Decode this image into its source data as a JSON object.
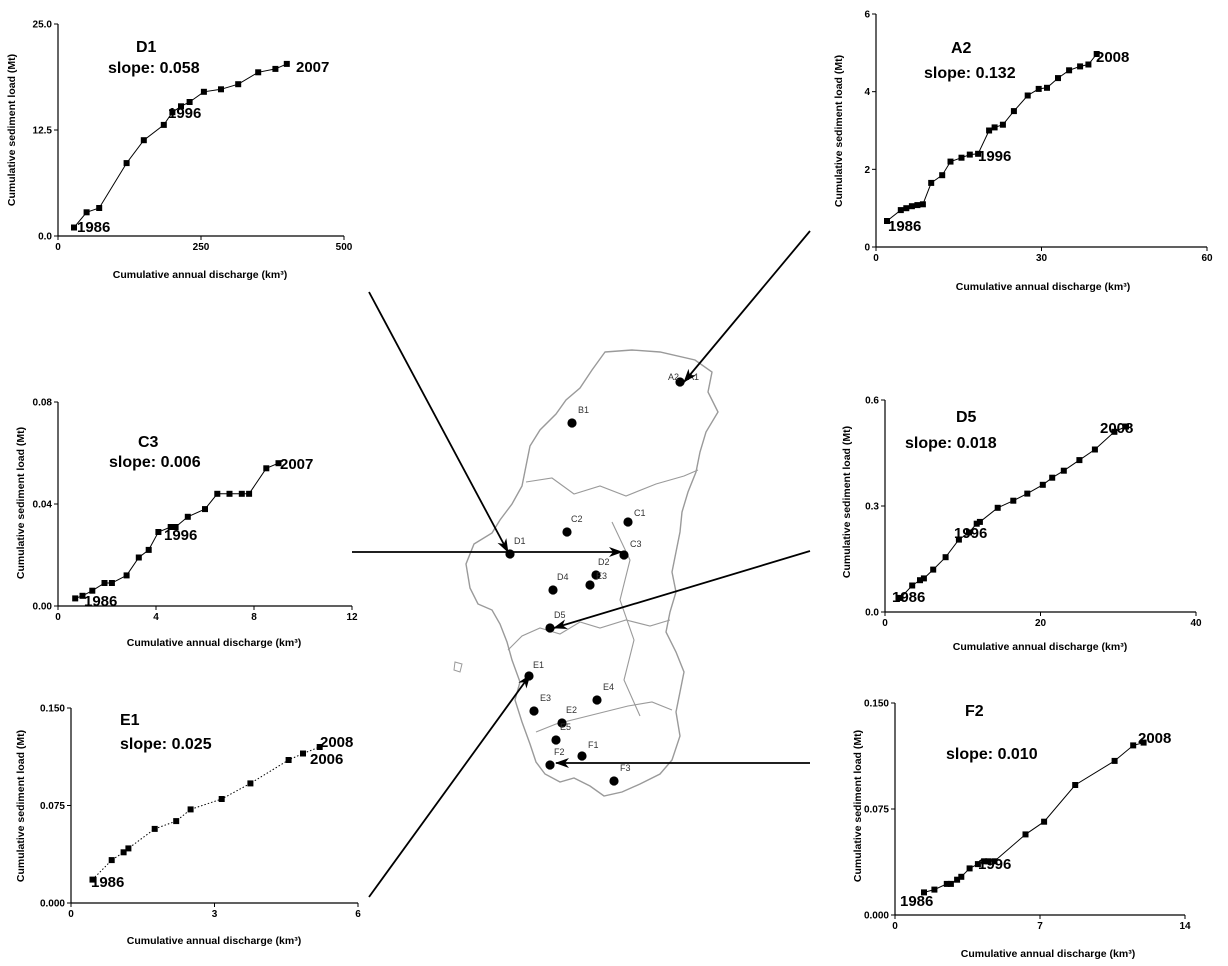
{
  "figure": {
    "map_labels": [
      "A2",
      "A1",
      "B1",
      "C1",
      "C2",
      "D1",
      "C3",
      "D2",
      "E3",
      "D4",
      "D5",
      "E1",
      "E3",
      "E4",
      "E2",
      "E5",
      "F1",
      "F2",
      "F3"
    ]
  },
  "chart_data": [
    {
      "id": "D1",
      "type": "line",
      "title": "D1",
      "subtitle": "slope: 0.058",
      "xlabel": "Cumulative annual discharge (km³)",
      "ylabel": "Cumulative sediment load (Mt)",
      "xlim": [
        0,
        500
      ],
      "ylim": [
        0,
        25
      ],
      "xticks": [
        "0",
        "250",
        "500"
      ],
      "yticks": [
        "0.0",
        "12.5",
        "25.0"
      ],
      "annotations": [
        "1986",
        "1996",
        "2007"
      ],
      "line_style": "solid",
      "series": [
        {
          "x": [
            28,
            50,
            72,
            120,
            150,
            185,
            200,
            215,
            230,
            255,
            285,
            315,
            350,
            380,
            400
          ],
          "y": [
            1.0,
            2.8,
            3.3,
            8.6,
            11.3,
            13.1,
            14.6,
            15.3,
            15.8,
            17.0,
            17.3,
            17.9,
            19.3,
            19.7,
            20.3
          ]
        }
      ]
    },
    {
      "id": "A2",
      "type": "line",
      "title": "A2",
      "subtitle": "slope: 0.132",
      "xlabel": "Cumulative annual discharge (km³)",
      "ylabel": "Cumulative sediment load (Mt)",
      "xlim": [
        0,
        60
      ],
      "ylim": [
        0,
        6
      ],
      "xticks": [
        "0",
        "30",
        "60"
      ],
      "yticks": [
        "0",
        "2",
        "4",
        "6"
      ],
      "annotations": [
        "1986",
        "1996",
        "2008"
      ],
      "line_style": "solid",
      "series": [
        {
          "x": [
            2,
            4.5,
            5.5,
            6.5,
            7.5,
            8.5,
            10,
            12,
            13.5,
            15.5,
            17,
            18.5,
            20.5,
            21.5,
            23,
            25,
            27.5,
            29.5,
            31,
            33,
            35,
            37,
            38.5,
            40
          ],
          "y": [
            0.67,
            0.95,
            1.0,
            1.05,
            1.08,
            1.1,
            1.65,
            1.85,
            2.2,
            2.3,
            2.38,
            2.4,
            3.0,
            3.08,
            3.15,
            3.5,
            3.9,
            4.07,
            4.1,
            4.35,
            4.55,
            4.65,
            4.7,
            4.97
          ]
        }
      ]
    },
    {
      "id": "C3",
      "type": "line",
      "title": "C3",
      "subtitle": "slope: 0.006",
      "xlabel": "Cumulative annual discharge (km³)",
      "ylabel": "Cumulative sediment load (Mt)",
      "xlim": [
        0,
        12
      ],
      "ylim": [
        0,
        0.08
      ],
      "xticks": [
        "0",
        "4",
        "8",
        "12"
      ],
      "yticks": [
        "0.00",
        "0.04",
        "0.08"
      ],
      "annotations": [
        "1986",
        "1996",
        "2007"
      ],
      "line_style": "solid",
      "series": [
        {
          "x": [
            0.7,
            1.0,
            1.4,
            1.9,
            2.2,
            2.8,
            3.3,
            3.7,
            4.1,
            4.6,
            4.8,
            5.3,
            6.0,
            6.5,
            7.0,
            7.5,
            7.8,
            8.5,
            9.0
          ],
          "y": [
            0.003,
            0.004,
            0.006,
            0.009,
            0.009,
            0.012,
            0.019,
            0.022,
            0.029,
            0.031,
            0.031,
            0.035,
            0.038,
            0.044,
            0.044,
            0.044,
            0.044,
            0.054,
            0.056
          ]
        }
      ]
    },
    {
      "id": "D5",
      "type": "line",
      "title": "D5",
      "subtitle": "slope: 0.018",
      "xlabel": "Cumulative annual discharge (km³)",
      "ylabel": "Cumulative sediment load (Mt)",
      "xlim": [
        0,
        40
      ],
      "ylim": [
        0,
        0.6
      ],
      "xticks": [
        "0",
        "20",
        "40"
      ],
      "yticks": [
        "0.0",
        "0.3",
        "0.6"
      ],
      "annotations": [
        "1986",
        "1996",
        "2008"
      ],
      "line_style": "solid",
      "series": [
        {
          "x": [
            2.0,
            3.5,
            4.5,
            5.0,
            6.2,
            7.8,
            9.5,
            10.8,
            11.8,
            12.2,
            14.5,
            16.5,
            18.3,
            20.3,
            21.5,
            23.0,
            25.0,
            27.0,
            29.5,
            31.0
          ],
          "y": [
            0.04,
            0.075,
            0.09,
            0.095,
            0.12,
            0.155,
            0.205,
            0.225,
            0.25,
            0.255,
            0.295,
            0.315,
            0.335,
            0.36,
            0.38,
            0.4,
            0.43,
            0.46,
            0.51,
            0.525
          ]
        }
      ]
    },
    {
      "id": "E1",
      "type": "line",
      "title": "E1",
      "subtitle": "slope: 0.025",
      "xlabel": "Cumulative annual discharge (km³)",
      "ylabel": "Cumulative sediment load (Mt)",
      "xlim": [
        0,
        6
      ],
      "ylim": [
        0,
        0.15
      ],
      "xticks": [
        "0",
        "3",
        "6"
      ],
      "yticks": [
        "0.000",
        "0.075",
        "0.150"
      ],
      "annotations": [
        "1986",
        "2006",
        "2008"
      ],
      "line_style": "dotted",
      "series": [
        {
          "x": [
            0.45,
            0.85,
            1.1,
            1.2,
            1.75,
            2.2,
            2.5,
            3.15,
            3.75,
            4.55,
            4.85,
            5.2
          ],
          "y": [
            0.018,
            0.033,
            0.039,
            0.042,
            0.057,
            0.063,
            0.072,
            0.08,
            0.092,
            0.11,
            0.115,
            0.12
          ]
        }
      ]
    },
    {
      "id": "F2",
      "type": "line",
      "title": "F2",
      "subtitle": "slope: 0.010",
      "xlabel": "Cumulative annual discharge (km³)",
      "ylabel": "Cumulative sediment load (Mt)",
      "xlim": [
        0,
        14
      ],
      "ylim": [
        0,
        0.15
      ],
      "xticks": [
        "0",
        "7",
        "14"
      ],
      "yticks": [
        "0.000",
        "0.075",
        "0.150"
      ],
      "annotations": [
        "1986",
        "1996",
        "2008"
      ],
      "line_style": "solid",
      "series": [
        {
          "x": [
            1.4,
            1.9,
            2.5,
            2.7,
            3.0,
            3.2,
            3.6,
            4.0,
            4.3,
            4.5,
            4.8,
            6.3,
            7.2,
            8.7,
            10.6,
            11.5,
            12.0
          ],
          "y": [
            0.016,
            0.018,
            0.022,
            0.022,
            0.025,
            0.027,
            0.033,
            0.036,
            0.038,
            0.038,
            0.038,
            0.057,
            0.066,
            0.092,
            0.109,
            0.12,
            0.122
          ]
        }
      ]
    }
  ]
}
